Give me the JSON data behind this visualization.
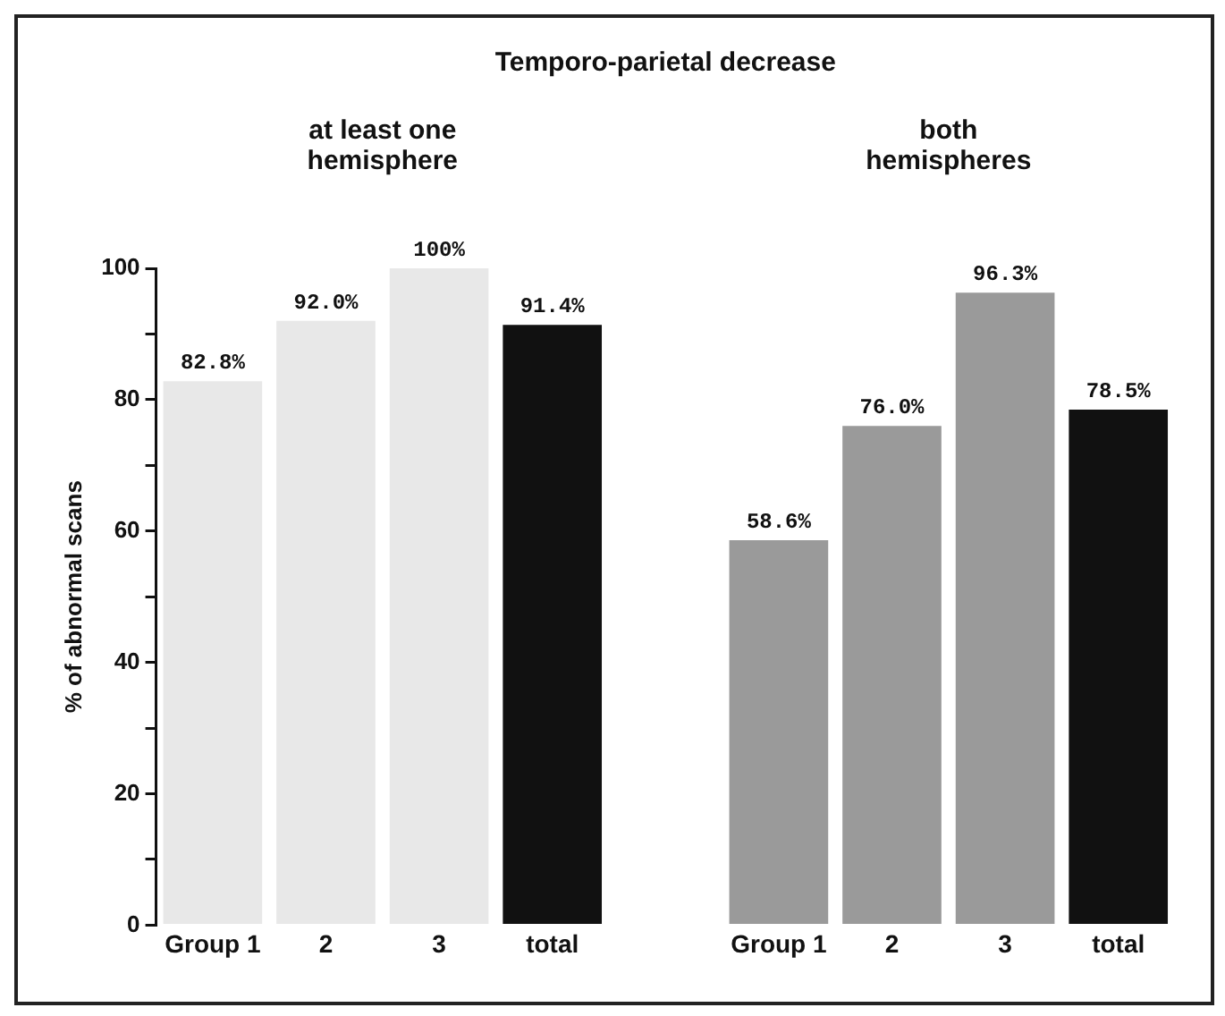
{
  "chart_data": {
    "type": "bar",
    "title": "Temporo-parietal decrease",
    "ylabel": "% of abnormal scans",
    "categories": [
      "Group 1",
      "2",
      "3",
      "total",
      null,
      "Group 1",
      "2",
      "3",
      "total"
    ],
    "values": [
      82.8,
      92.0,
      100,
      91.4,
      null,
      58.6,
      76.0,
      96.3,
      78.5
    ],
    "value_labels": [
      "82.8%",
      "92.0%",
      "100%",
      "91.4%",
      null,
      "58.6%",
      "76.0%",
      "96.3%",
      "78.5%"
    ],
    "colors": [
      "#e8e8e8",
      "#e8e8e8",
      "#e8e8e8",
      "#111111",
      "#ffffff",
      "#9a9a9a",
      "#9a9a9a",
      "#9a9a9a",
      "#111111"
    ],
    "annotations": [
      "at least one hemisphere",
      "both hemispheres"
    ],
    "ylim": [
      0,
      100
    ],
    "yticks": [
      0,
      {
        "value": 10,
        "label": null
      },
      20,
      {
        "value": 30,
        "label": null
      },
      40,
      {
        "value": 50,
        "label": null
      },
      60,
      {
        "value": 70,
        "label": null
      },
      80,
      {
        "value": 90,
        "label": null
      },
      100
    ],
    "grid": false,
    "legend": false
  }
}
